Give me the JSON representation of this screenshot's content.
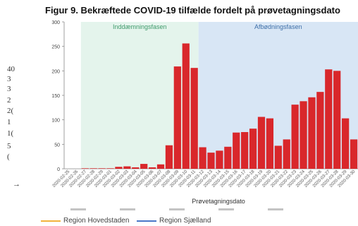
{
  "figure_title": "Figur 9. Bekræftede COVID-19 tilfælde fordelt på prøvetagningsdato",
  "background_partial": {
    "labels": [
      "40",
      "3",
      "3",
      "2",
      "2(",
      "1",
      "1(",
      "5",
      "(",
      "→"
    ]
  },
  "legend_bottom": [
    {
      "label": "Region Hovedstaden",
      "color": "#f2b43c"
    },
    {
      "label": "Region Sjælland",
      "color": "#4a78c8"
    }
  ],
  "chart_data": {
    "type": "bar",
    "title": "Figur 9. Bekræftede COVID-19 tilfælde fordelt på prøvetagningsdato",
    "xlabel": "Prøvetagningsdato",
    "ylabel": "",
    "ylim": [
      0,
      300
    ],
    "yticks": [
      0,
      50,
      100,
      150,
      200,
      250,
      300
    ],
    "grid": false,
    "bar_color": "#d9272b",
    "phases": [
      {
        "label": "Inddæmningsfasen",
        "from": "2020-02-27",
        "to": "2020-03-11",
        "color": "#e4f4ec",
        "label_color": "#3f9a6b"
      },
      {
        "label": "Afbødningsfasen",
        "from": "2020-03-12",
        "to": "2020-03-30",
        "color": "#d8e6f5",
        "label_color": "#3e6fa8"
      }
    ],
    "categories": [
      "2020-02-25",
      "2020-02-26",
      "2020-02-27",
      "2020-02-28",
      "2020-02-29",
      "2020-03-01",
      "2020-03-02",
      "2020-03-03",
      "2020-03-04",
      "2020-03-05",
      "2020-03-06",
      "2020-03-07",
      "2020-03-08",
      "2020-03-09",
      "2020-03-10",
      "2020-03-11",
      "2020-03-12",
      "2020-03-13",
      "2020-03-14",
      "2020-03-15",
      "2020-03-16",
      "2020-03-17",
      "2020-03-18",
      "2020-03-19",
      "2020-03-20",
      "2020-03-21",
      "2020-03-22",
      "2020-03-23",
      "2020-03-24",
      "2020-03-25",
      "2020-03-26",
      "2020-03-27",
      "2020-03-28",
      "2020-03-29",
      "2020-03-30"
    ],
    "values": [
      0,
      0,
      1,
      1,
      1,
      1,
      4,
      5,
      3,
      10,
      3,
      9,
      48,
      209,
      256,
      206,
      44,
      33,
      37,
      45,
      74,
      75,
      82,
      106,
      103,
      47,
      60,
      131,
      138,
      146,
      157,
      203,
      200,
      103,
      60
    ]
  }
}
